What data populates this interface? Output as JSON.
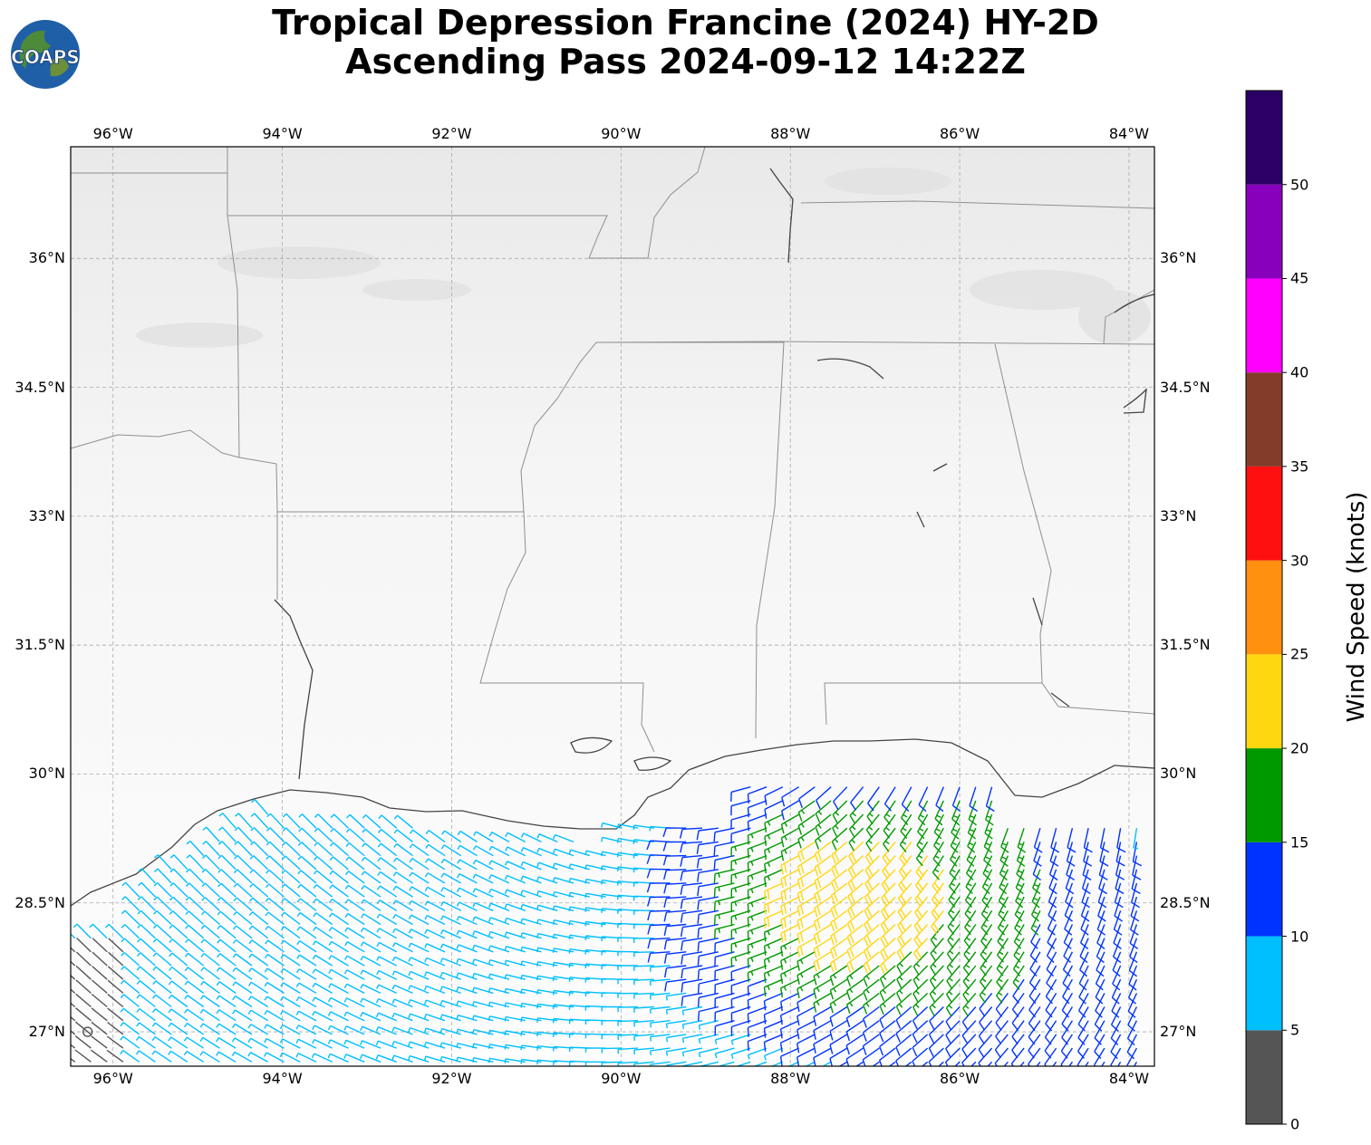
{
  "title": {
    "line1": "Tropical Depression Francine (2024) HY-2D",
    "line2": "Ascending Pass 2024-09-12 14:22Z"
  },
  "logo": {
    "text": "COAPS"
  },
  "map": {
    "projection": "plate-carree",
    "extent": {
      "lon_min": -96.5,
      "lon_max": -83.7,
      "lat_min": 26.6,
      "lat_max": 37.3
    },
    "background": "grayscale infrared",
    "gridlines": true,
    "lon_ticks": [
      "96°W",
      "94°W",
      "92°W",
      "90°W",
      "88°W",
      "86°W",
      "84°W"
    ],
    "lat_ticks": [
      "36°N",
      "34.5°N",
      "33°N",
      "31.5°N",
      "30°N",
      "28.5°N",
      "27°N"
    ],
    "lon_tick_values": [
      -96,
      -94,
      -92,
      -90,
      -88,
      -86,
      -84
    ],
    "lat_tick_values": [
      36,
      34.5,
      33,
      31.5,
      30,
      28.5,
      27
    ]
  },
  "colorbar": {
    "label": "Wind Speed (knots)",
    "tick_labels": [
      "0",
      "5",
      "10",
      "15",
      "20",
      "25",
      "30",
      "35",
      "40",
      "45",
      "50"
    ],
    "bins": [
      {
        "min": 0,
        "max": 5,
        "color": "#555555"
      },
      {
        "min": 5,
        "max": 10,
        "color": "#00bfff"
      },
      {
        "min": 10,
        "max": 15,
        "color": "#0033ff"
      },
      {
        "min": 15,
        "max": 20,
        "color": "#009900"
      },
      {
        "min": 20,
        "max": 25,
        "color": "#ffd711"
      },
      {
        "min": 25,
        "max": 30,
        "color": "#ff9010"
      },
      {
        "min": 30,
        "max": 35,
        "color": "#ff1010"
      },
      {
        "min": 35,
        "max": 40,
        "color": "#843c2a"
      },
      {
        "min": 40,
        "max": 45,
        "color": "#ff00ff"
      },
      {
        "min": 45,
        "max": 50,
        "color": "#8800bb"
      },
      {
        "min": 50,
        "max": 55,
        "color": "#2b0066"
      }
    ]
  }
}
